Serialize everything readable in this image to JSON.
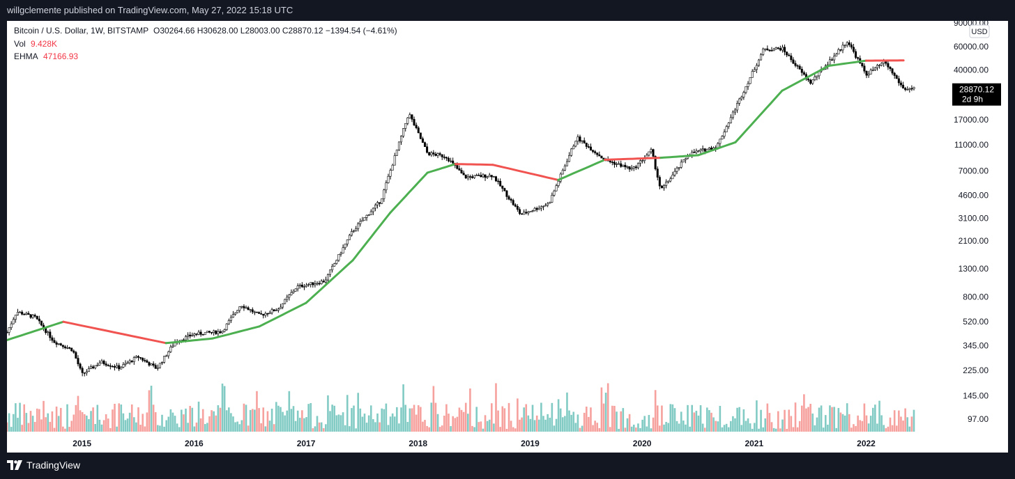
{
  "header": {
    "published": "willgclemente published on TradingView.com, May 27, 2022 15:18 UTC"
  },
  "legend": {
    "symbol": "Bitcoin / U.S. Dollar, 1W, BITSTAMP",
    "ohlc": "O30264.66  H30628.00  L28003.00  C28870.12  −1394.54 (−4.61%)",
    "vol_label": "Vol",
    "vol_value": "9.428K",
    "ehma_label": "EHMA",
    "ehma_value": "47166.93"
  },
  "currency": "USD",
  "price_tag": {
    "price": "28870.12",
    "countdown": "2d 9h"
  },
  "footer": {
    "brand": "TradingView"
  },
  "colors": {
    "candle": "#000000",
    "ma_up": "#4caf50",
    "ma_down": "#f05350",
    "vol_up": "#81cbc4",
    "vol_down": "#f6a19d",
    "legend_value": "#f23645"
  },
  "chart_data": {
    "type": "candlestick",
    "timeframe": "1W",
    "exchange": "BITSTAMP",
    "y_scale": "log",
    "y_ticks": [
      97,
      145,
      225,
      345,
      520,
      800,
      1300,
      2100,
      3100,
      4600,
      7000,
      11000,
      17000,
      40000,
      60000,
      90000
    ],
    "x_ticks": [
      "2015",
      "2016",
      "2017",
      "2018",
      "2019",
      "2020",
      "2021",
      "2022"
    ],
    "price_path": [
      [
        "2014-05",
        440
      ],
      [
        "2014-06",
        620
      ],
      [
        "2014-08",
        560
      ],
      [
        "2014-10",
        370
      ],
      [
        "2014-12",
        320
      ],
      [
        "2015-01",
        210
      ],
      [
        "2015-03",
        260
      ],
      [
        "2015-05",
        235
      ],
      [
        "2015-07",
        285
      ],
      [
        "2015-09",
        232
      ],
      [
        "2015-11",
        370
      ],
      [
        "2016-01",
        420
      ],
      [
        "2016-04",
        440
      ],
      [
        "2016-06",
        700
      ],
      [
        "2016-08",
        580
      ],
      [
        "2016-10",
        650
      ],
      [
        "2016-12",
        950
      ],
      [
        "2017-03",
        1050
      ],
      [
        "2017-06",
        2500
      ],
      [
        "2017-09",
        4200
      ],
      [
        "2017-12",
        19000
      ],
      [
        "2018-02",
        9500
      ],
      [
        "2018-04",
        9000
      ],
      [
        "2018-06",
        6300
      ],
      [
        "2018-09",
        6500
      ],
      [
        "2018-12",
        3300
      ],
      [
        "2019-03",
        4000
      ],
      [
        "2019-06",
        12500
      ],
      [
        "2019-09",
        8500
      ],
      [
        "2019-12",
        7200
      ],
      [
        "2020-02",
        10000
      ],
      [
        "2020-03",
        5000
      ],
      [
        "2020-06",
        9400
      ],
      [
        "2020-09",
        10700
      ],
      [
        "2020-12",
        29000
      ],
      [
        "2021-02",
        57000
      ],
      [
        "2021-04",
        58000
      ],
      [
        "2021-07",
        32000
      ],
      [
        "2021-11",
        66000
      ],
      [
        "2022-01",
        37000
      ],
      [
        "2022-03",
        46000
      ],
      [
        "2022-05",
        28870
      ]
    ],
    "ehma_path": [
      [
        "2014-05",
        380,
        "up"
      ],
      [
        "2014-11",
        520,
        "up"
      ],
      [
        "2015-10",
        360,
        "down"
      ],
      [
        "2016-03",
        390,
        "up"
      ],
      [
        "2016-08",
        480,
        "up"
      ],
      [
        "2017-01",
        720,
        "up"
      ],
      [
        "2017-06",
        1500,
        "up"
      ],
      [
        "2017-10",
        3400,
        "up"
      ],
      [
        "2018-02",
        6800,
        "up"
      ],
      [
        "2018-05",
        7900,
        "up"
      ],
      [
        "2018-09",
        7800,
        "down"
      ],
      [
        "2019-04",
        6000,
        "down"
      ],
      [
        "2019-09",
        8500,
        "up"
      ],
      [
        "2020-03",
        8800,
        "down"
      ],
      [
        "2020-07",
        9200,
        "up"
      ],
      [
        "2020-11",
        11500,
        "up"
      ],
      [
        "2021-04",
        28000,
        "up"
      ],
      [
        "2021-09",
        43000,
        "up"
      ],
      [
        "2022-01",
        47000,
        "up"
      ],
      [
        "2022-05",
        47166.93,
        "down"
      ]
    ],
    "last": {
      "open": 30264.66,
      "high": 30628.0,
      "low": 28003.0,
      "close": 28870.12,
      "change": -1394.54,
      "change_pct": -4.61,
      "volume": "9.428K",
      "ehma": 47166.93
    }
  }
}
